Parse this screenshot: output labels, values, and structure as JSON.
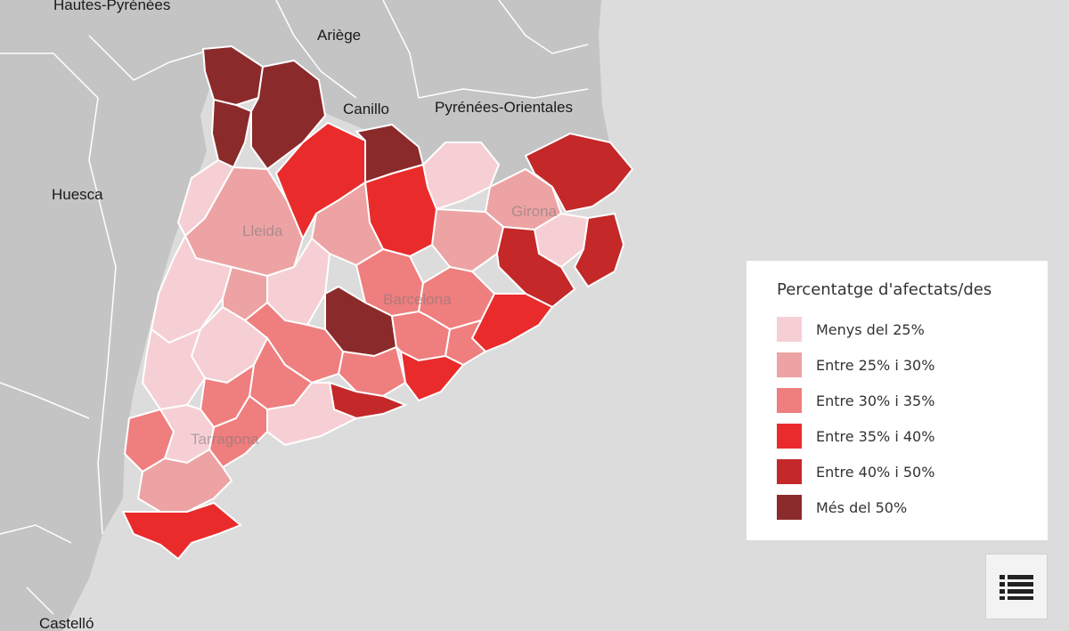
{
  "map": {
    "place_labels": {
      "hautes_pyrenees": "Hautes-Pyrénées",
      "ariege": "Ariège",
      "canillo": "Canillo",
      "pyrenees_orientales": "Pyrénées-Orientales",
      "huesca": "Huesca",
      "castello": "Castelló"
    },
    "province_labels": {
      "lleida": "Lleida",
      "girona": "Girona",
      "barcelona": "Barcelona",
      "tarragona": "Tarragona"
    },
    "colors": {
      "sea": "#dcdcdc",
      "land_outside": "#c4c4c4",
      "border": "#ffffff"
    }
  },
  "legend": {
    "title": "Percentatge d'afectats/des",
    "items": [
      {
        "label": "Menys del 25%",
        "color": "#f6cfd4"
      },
      {
        "label": "Entre 25% i 30%",
        "color": "#eda3a3"
      },
      {
        "label": "Entre 30% i 35%",
        "color": "#ef7e7e"
      },
      {
        "label": "Entre 35% i 40%",
        "color": "#ea2b2b"
      },
      {
        "label": "Entre 40% i 50%",
        "color": "#c42828"
      },
      {
        "label": "Més del 50%",
        "color": "#8b2a2a"
      }
    ]
  },
  "controls": {
    "list_icon": "list-icon"
  }
}
